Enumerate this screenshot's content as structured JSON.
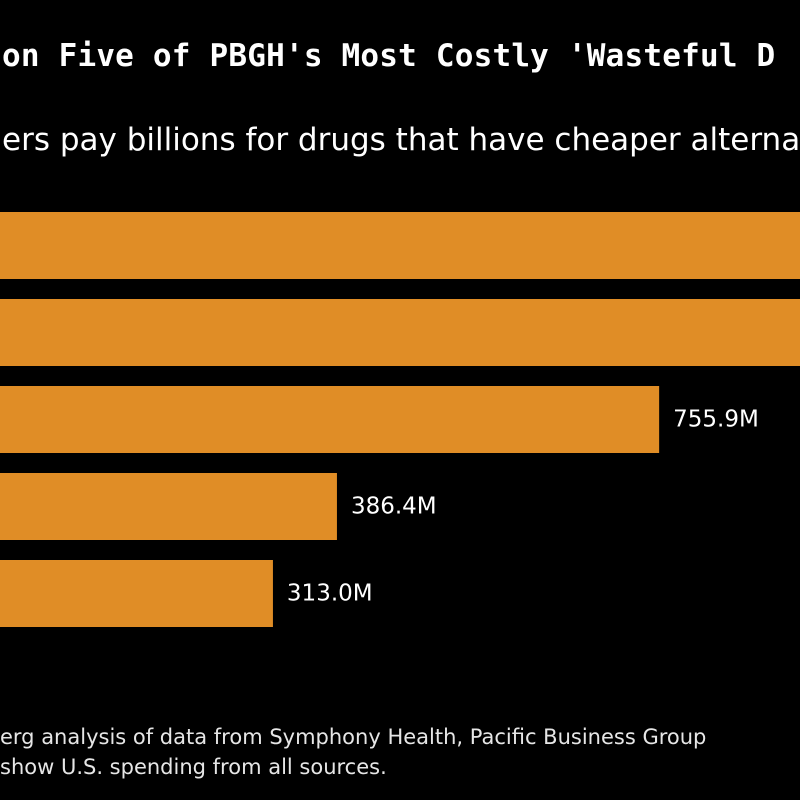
{
  "title": "on Five of PBGH's Most Costly 'Wasteful D",
  "subtitle": "ers pay billions for drugs that have cheaper alterna",
  "footnote": {
    "line1": "erg analysis of data from Symphony Health, Pacific Business Group",
    "line2": "show U.S. spending from all sources."
  },
  "colors": {
    "bar": "#e08d26",
    "background": "#000000",
    "label": "#ffffff"
  },
  "chart_data": {
    "type": "bar",
    "orientation": "horizontal",
    "unit": "M",
    "categories": [
      "",
      "",
      "",
      "",
      ""
    ],
    "values": [
      null,
      null,
      755.9,
      386.4,
      313.0
    ],
    "value_labels": [
      "",
      "",
      "755.9M",
      "386.4M",
      "313.0M"
    ],
    "note": "first two bars extend beyond the visible area; their values are not visible"
  }
}
